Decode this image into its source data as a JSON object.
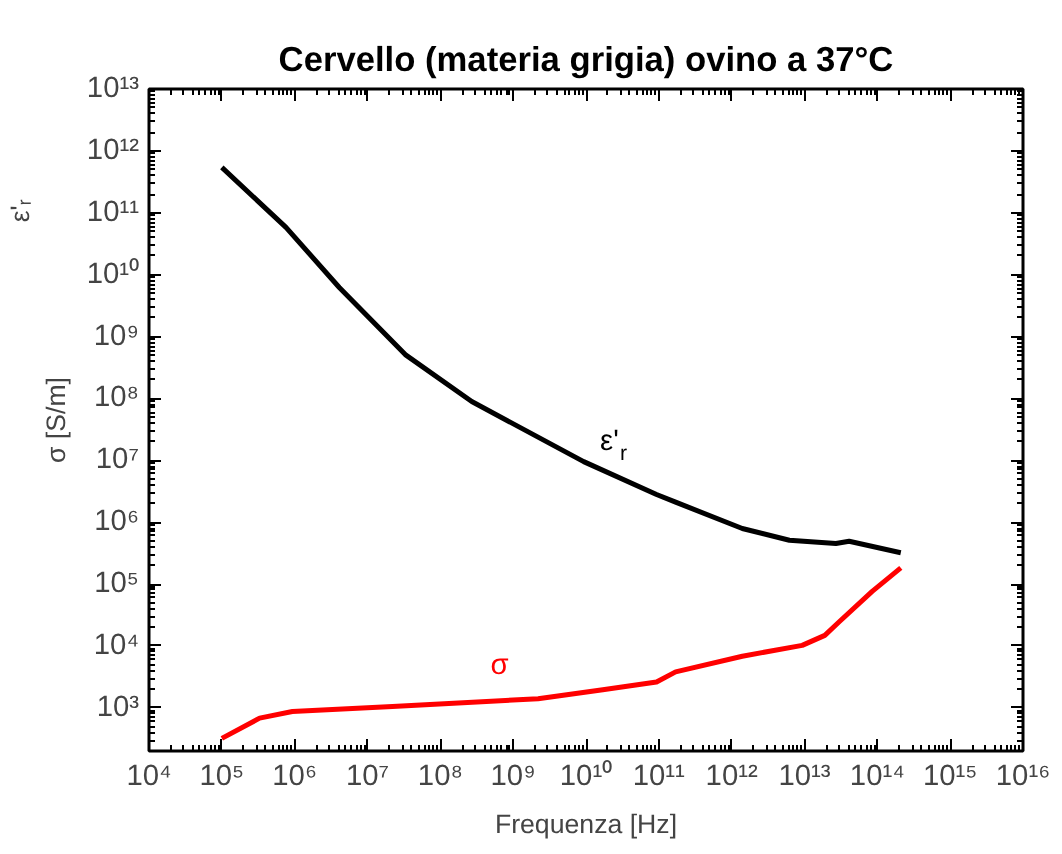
{
  "chart_data": {
    "type": "line",
    "title": "Cervello (materia grigia) ovino a 37°C",
    "xlabel": "Frequenza [Hz]",
    "ylabel": "σ [S/m]",
    "log": "xy",
    "grid": false,
    "legend": false,
    "line_style": "solid",
    "marker": "none",
    "xlim": [
      10000.0,
      1e+16
    ],
    "ylim": [
      200,
      10000000000000.0
    ],
    "xticks": [
      {
        "value": 10000.0,
        "label": "10⁴"
      },
      {
        "value": 100000.0,
        "label": "10⁵"
      },
      {
        "value": 1000000.0,
        "label": "10⁶"
      },
      {
        "value": 10000000.0,
        "label": "10⁷"
      },
      {
        "value": 100000000.0,
        "label": "10⁸"
      },
      {
        "value": 1000000000.0,
        "label": "10⁹"
      },
      {
        "value": 10000000000.0,
        "label": "10¹⁰"
      },
      {
        "value": 100000000000.0,
        "label": "10¹¹"
      },
      {
        "value": 1000000000000.0,
        "label": "10¹²"
      },
      {
        "value": 10000000000000.0,
        "label": "10¹³"
      },
      {
        "value": 100000000000000.0,
        "label": "10¹⁴"
      },
      {
        "value": 1000000000000000.0,
        "label": "10¹⁵"
      },
      {
        "value": 1e+16,
        "label": "10¹⁶"
      }
    ],
    "yticks": [
      {
        "value": 1000.0,
        "label": "10³"
      },
      {
        "value": 10000.0,
        "label": "10⁴"
      },
      {
        "value": 100000.0,
        "label": "10⁵"
      },
      {
        "value": 1000000.0,
        "label": "10⁶"
      },
      {
        "value": 10000000.0,
        "label": "10⁷"
      },
      {
        "value": 100000000.0,
        "label": "10⁸"
      },
      {
        "value": 1000000000.0,
        "label": "10⁹"
      },
      {
        "value": 10000000000.0,
        "label": "10¹⁰"
      },
      {
        "value": 100000000000.0,
        "label": "10¹¹"
      },
      {
        "value": 1000000000000.0,
        "label": "10¹²"
      },
      {
        "value": 10000000000000.0,
        "label": "10¹³"
      }
    ],
    "series": [
      {
        "name": "ε'$_{r}$",
        "color": "#000000",
        "x": [
          100000.0,
          760000.0,
          4100000.0,
          33000000.0,
          270000000.0,
          9300000000.0,
          93000000000.0,
          170000000000.0,
          1400000000000.0,
          6200000000000.0,
          27000000000000.0,
          41000000000000.0,
          210000000000000.0
        ],
        "values": [
          540000000000.0,
          58000000000.0,
          6200000000.0,
          510000000.0,
          89000000.0,
          9500000.0,
          2800000.0,
          2100000.0,
          790000.0,
          510000.0,
          450000.0,
          490000.0,
          320000.0
        ]
      },
      {
        "name": "σ",
        "color": "#ff0000",
        "x": [
          100000.0,
          330000.0,
          930000.0,
          22000000.0,
          2200000000.0,
          17000000000.0,
          93000000000.0,
          170000000000.0,
          1400000000000.0,
          9300000000000.0,
          19000000000000.0,
          30000000000000.0,
          85000000000000.0,
          210000000000000.0
        ],
        "values": [
          320,
          680,
          870,
          1050,
          1400,
          1950,
          2600,
          3800,
          6800,
          10200,
          14800,
          24500,
          76000,
          182000
        ]
      }
    ],
    "annotations": [
      "ε'ᵣ"
    ]
  }
}
